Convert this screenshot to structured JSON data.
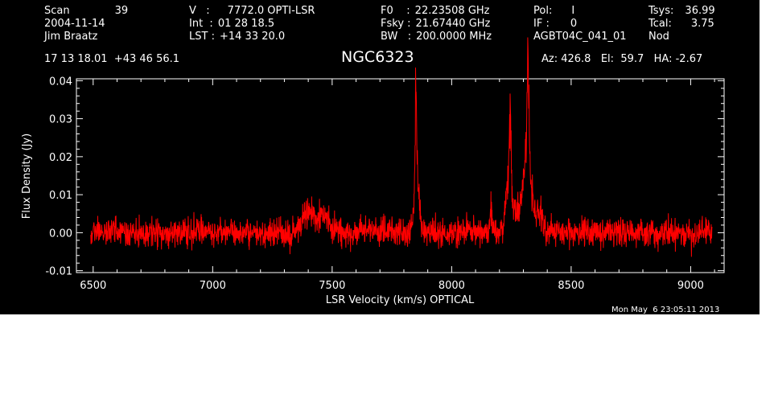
{
  "header": {
    "col1": [
      {
        "label": "Scan",
        "value": "39"
      },
      {
        "label": "2004-11-14",
        "value": ""
      },
      {
        "label": "Jim Braatz",
        "value": ""
      }
    ],
    "col2": [
      {
        "label": "V   :",
        "value": "7772.0 OPTI-LSR"
      },
      {
        "label": "Int  :",
        "value": "01 28 18.5"
      },
      {
        "label": "LST :",
        "value": "+14 33 20.0"
      }
    ],
    "col3": [
      {
        "label": "F0    :",
        "value": "22.23508 GHz"
      },
      {
        "label": "Fsky :",
        "value": "21.67440 GHz"
      },
      {
        "label": "BW   :",
        "value": "200.0000 MHz"
      }
    ],
    "col4": [
      {
        "label": "Pol:",
        "value": "I"
      },
      {
        "label": "IF :",
        "value": "0"
      },
      {
        "label": "AGBT04C_041_01",
        "value": ""
      }
    ],
    "col5": [
      {
        "label": "Tsys:",
        "value": "36.99"
      },
      {
        "label": "Tcal:",
        "value": "3.75"
      },
      {
        "label": "Nod",
        "value": ""
      }
    ],
    "coords": "17 13 18.01  +43 46 56.1",
    "pointing": "Az: 426.8   El:  59.7   HA: -2.67"
  },
  "timestamp": "Mon May  6 23:05:11 2013",
  "chart_data": {
    "type": "line",
    "title": "NGC6323",
    "xlabel": "LSR Velocity (km/s) OPTICAL",
    "ylabel": "Flux Density (Jy)",
    "xlim": [
      6430,
      9140
    ],
    "ylim": [
      -0.0105,
      0.0405
    ],
    "xticks": [
      6500,
      7000,
      7500,
      8000,
      8500,
      9000
    ],
    "xtick_labels": [
      "6500",
      "7000",
      "7500",
      "8000",
      "8500",
      "9000"
    ],
    "yticks": [
      -0.01,
      0.0,
      0.01,
      0.02,
      0.03,
      0.04
    ],
    "ytick_labels": [
      "-0.01",
      "0.00",
      "0.01",
      "0.02",
      "0.03",
      "0.04"
    ],
    "series": [
      {
        "color": "#ff0000",
        "x_range": [
          6490,
          9090
        ],
        "noise_rms": 0.0022,
        "features": [
          {
            "center": 7405,
            "width": 30,
            "peak": 0.007
          },
          {
            "center": 7470,
            "width": 25,
            "peak": 0.004
          },
          {
            "center": 7855,
            "width": 10,
            "peak": 0.02
          },
          {
            "center": 7850,
            "width": 3,
            "peak": 0.03
          },
          {
            "center": 8165,
            "width": 4,
            "peak": 0.01
          },
          {
            "center": 8240,
            "width": 12,
            "peak": 0.018
          },
          {
            "center": 8245,
            "width": 3,
            "peak": 0.026
          },
          {
            "center": 8310,
            "width": 35,
            "peak": 0.012
          },
          {
            "center": 8315,
            "width": 12,
            "peak": 0.017
          },
          {
            "center": 8320,
            "width": 4,
            "peak": 0.03
          },
          {
            "center": 8370,
            "width": 8,
            "peak": 0.006
          }
        ]
      }
    ]
  }
}
